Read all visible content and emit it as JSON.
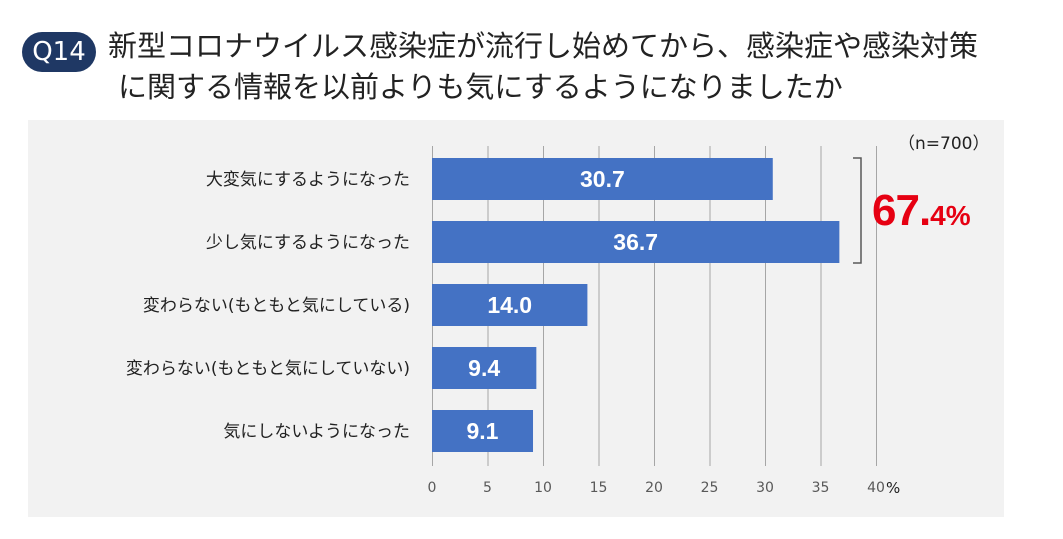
{
  "header": {
    "badge": "Q14",
    "title_line1": "新型コロナウイルス感染症が流行し始めてから、感染症や感染対策",
    "title_line2": "に関する情報を以前よりも気にするようになりましたか"
  },
  "chart_data": {
    "type": "bar",
    "orientation": "horizontal",
    "note": "（n=700）",
    "categories": [
      "大変気にするようになった",
      "少し気にするようになった",
      "変わらない(もともと気にしている)",
      "変わらない(もともと気にしていない)",
      "気にしないようになった"
    ],
    "values": [
      30.7,
      36.7,
      14.0,
      9.4,
      9.1
    ],
    "value_labels": [
      "30.7",
      "36.7",
      "14.0",
      "9.4",
      "9.1"
    ],
    "xlim": [
      0,
      40
    ],
    "xticks": [
      0,
      5,
      10,
      15,
      20,
      25,
      30,
      35,
      40
    ],
    "x_unit": "%",
    "grid": true,
    "bar_color": "#4472c4",
    "annotation": {
      "bracket_groups": [
        0,
        1
      ],
      "text_big": "67.",
      "text_small": "4%",
      "color": "#e60012"
    }
  }
}
